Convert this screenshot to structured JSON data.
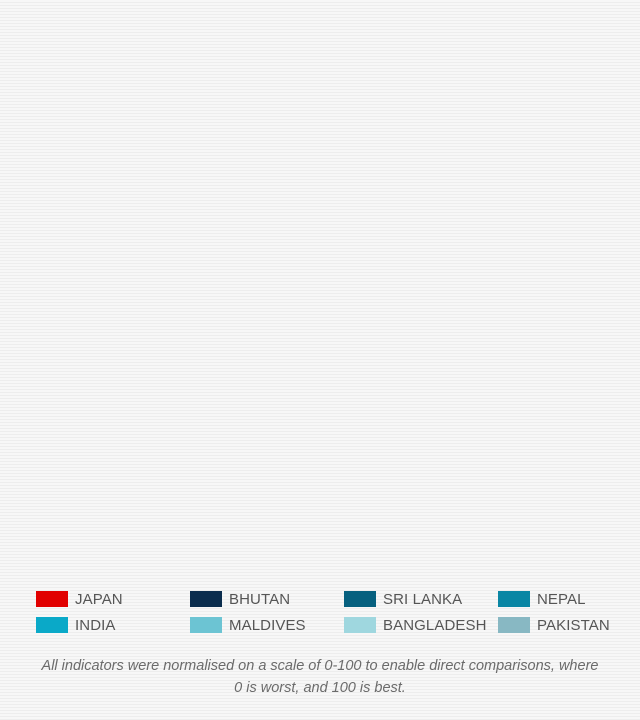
{
  "chart_data": {
    "type": "other",
    "legend": [
      {
        "name": "JAPAN",
        "color": "#e10000"
      },
      {
        "name": "BHUTAN",
        "color": "#0b2d4e"
      },
      {
        "name": "SRI LANKA",
        "color": "#06607f"
      },
      {
        "name": "NEPAL",
        "color": "#0a86a4"
      },
      {
        "name": "INDIA",
        "color": "#0aa9c8"
      },
      {
        "name": "MALDIVES",
        "color": "#6cc4d3"
      },
      {
        "name": "BANGLADESH",
        "color": "#9fd7df"
      },
      {
        "name": "PAKISTAN",
        "color": "#88b8c3"
      }
    ],
    "legend_placement": "bottom",
    "footnote": "All indicators were normalised on a scale of 0-100 to enable direct comparisons, where 0 is worst, and 100 is best."
  }
}
